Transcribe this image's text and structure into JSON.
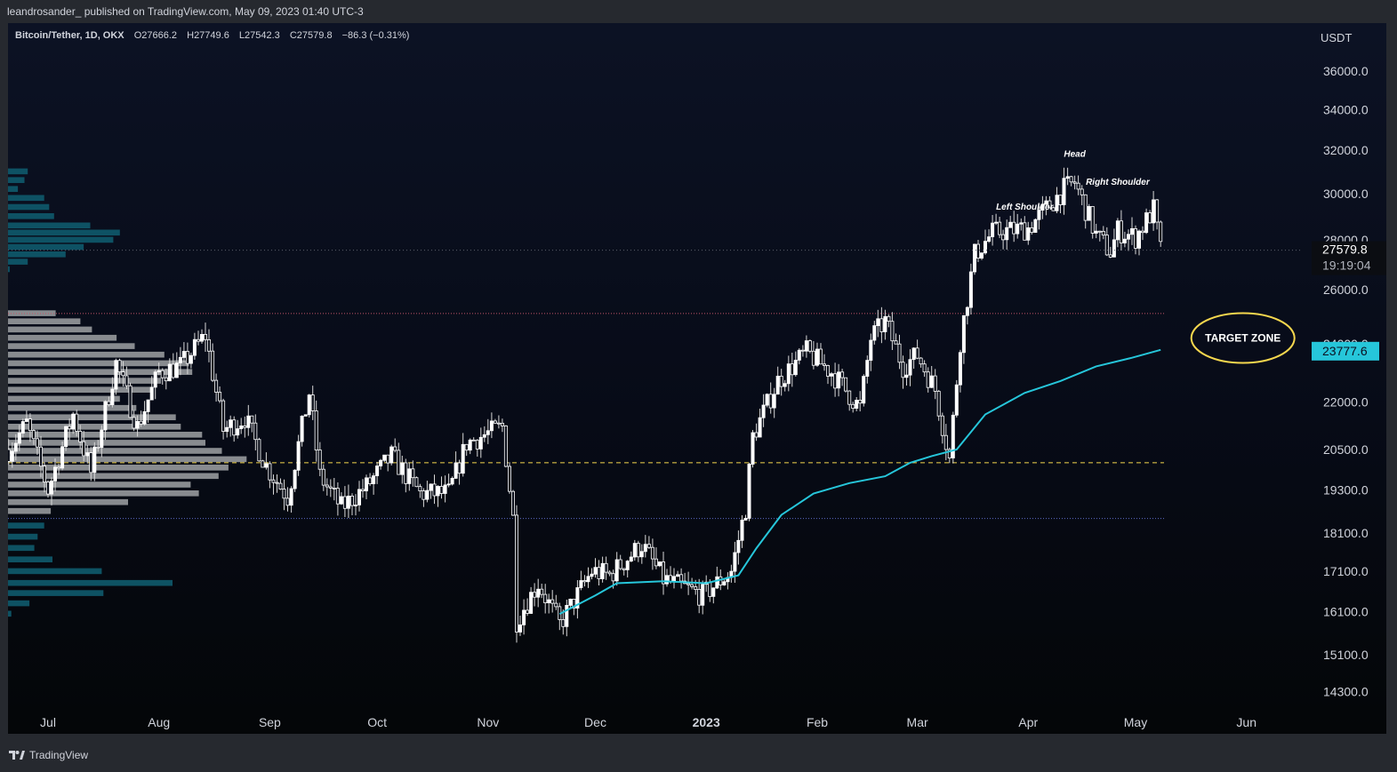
{
  "header": {
    "publisher_line": "leandrosander_ published on TradingView.com, May 09, 2023 01:40 UTC-3"
  },
  "legend": {
    "symbol": "Bitcoin/Tether, 1D, OKX",
    "open_label": "O",
    "open": "27666.2",
    "high_label": "H",
    "high": "27749.6",
    "low_label": "L",
    "low": "27542.3",
    "close_label": "C",
    "close": "27579.8",
    "change": "−86.3 (−0.31%)"
  },
  "footer": {
    "brand": "TradingView"
  },
  "colors": {
    "up_candle": "#ffffff",
    "ma_line": "#26c6da",
    "volume_profile_gray": "#8f9296",
    "volume_profile_teal": "#0f5668",
    "poc_line": "#f5d74e",
    "vah_line": "#c2566a",
    "val_line": "#5c6ac4",
    "target_zone_outline": "#f5d74e"
  },
  "chart_data": {
    "type": "candlestick",
    "currency_label": "USDT",
    "y_axis_scale": "log",
    "ylim": [
      13800,
      39000
    ],
    "y_ticks": [
      "36000.0",
      "34000.0",
      "32000.0",
      "30000.0",
      "28000.0",
      "26000.0",
      "22000.0",
      "20500.0",
      "19300.0",
      "18100.0",
      "17100.0",
      "16100.0",
      "15100.0",
      "14300.0"
    ],
    "x_ticks": [
      "Jul",
      "Aug",
      "Sep",
      "Oct",
      "Nov",
      "Dec",
      "2023",
      "Feb",
      "Mar",
      "Apr",
      "May",
      "Jun"
    ],
    "last_price": "27579.8",
    "countdown": "19:19:04",
    "ma_value_label": "23777.6",
    "hidden_price_label": "24000.0",
    "price_closes": [
      [
        "2022-06-20",
        20500
      ],
      [
        "2022-06-25",
        21300
      ],
      [
        "2022-07-01",
        19300
      ],
      [
        "2022-07-08",
        21600
      ],
      [
        "2022-07-13",
        19800
      ],
      [
        "2022-07-20",
        23300
      ],
      [
        "2022-07-26",
        21200
      ],
      [
        "2022-08-01",
        23000
      ],
      [
        "2022-08-07",
        23200
      ],
      [
        "2022-08-14",
        24300
      ],
      [
        "2022-08-19",
        21100
      ],
      [
        "2022-08-25",
        21500
      ],
      [
        "2022-08-31",
        20000
      ],
      [
        "2022-09-06",
        19100
      ],
      [
        "2022-09-12",
        22300
      ],
      [
        "2022-09-15",
        19700
      ],
      [
        "2022-09-21",
        18800
      ],
      [
        "2022-09-28",
        19400
      ],
      [
        "2022-10-05",
        20300
      ],
      [
        "2022-10-13",
        19200
      ],
      [
        "2022-10-21",
        19200
      ],
      [
        "2022-10-26",
        20700
      ],
      [
        "2022-11-05",
        21200
      ],
      [
        "2022-11-08",
        18500
      ],
      [
        "2022-11-09",
        15900
      ],
      [
        "2022-11-15",
        16800
      ],
      [
        "2022-11-21",
        15800
      ],
      [
        "2022-11-30",
        17100
      ],
      [
        "2022-12-05",
        17000
      ],
      [
        "2022-12-14",
        17800
      ],
      [
        "2022-12-20",
        16900
      ],
      [
        "2022-12-31",
        16500
      ],
      [
        "2023-01-08",
        17100
      ],
      [
        "2023-01-12",
        18800
      ],
      [
        "2023-01-14",
        20900
      ],
      [
        "2023-01-21",
        22700
      ],
      [
        "2023-01-29",
        23700
      ],
      [
        "2023-02-05",
        23000
      ],
      [
        "2023-02-13",
        21800
      ],
      [
        "2023-02-16",
        24200
      ],
      [
        "2023-02-20",
        24800
      ],
      [
        "2023-02-25",
        23200
      ],
      [
        "2023-03-01",
        23600
      ],
      [
        "2023-03-06",
        22400
      ],
      [
        "2023-03-10",
        20200
      ],
      [
        "2023-03-13",
        24100
      ],
      [
        "2023-03-17",
        27400
      ],
      [
        "2023-03-22",
        28300
      ],
      [
        "2023-04-01",
        28500
      ],
      [
        "2023-04-11",
        30200
      ],
      [
        "2023-04-14",
        30500
      ],
      [
        "2023-04-20",
        28200
      ],
      [
        "2023-04-24",
        27500
      ],
      [
        "2023-04-26",
        28400
      ],
      [
        "2023-05-01",
        28100
      ],
      [
        "2023-05-06",
        29300
      ],
      [
        "2023-05-08",
        27579.8
      ]
    ],
    "ma_series": [
      [
        "2022-11-21",
        16050
      ],
      [
        "2022-12-01",
        16500
      ],
      [
        "2022-12-07",
        16800
      ],
      [
        "2022-12-20",
        16850
      ],
      [
        "2023-01-01",
        16800
      ],
      [
        "2023-01-10",
        17000
      ],
      [
        "2023-01-15",
        17700
      ],
      [
        "2023-01-22",
        18600
      ],
      [
        "2023-01-31",
        19200
      ],
      [
        "2023-02-10",
        19500
      ],
      [
        "2023-02-20",
        19700
      ],
      [
        "2023-02-27",
        20100
      ],
      [
        "2023-03-05",
        20300
      ],
      [
        "2023-03-12",
        20500
      ],
      [
        "2023-03-20",
        21600
      ],
      [
        "2023-03-31",
        22300
      ],
      [
        "2023-04-10",
        22700
      ],
      [
        "2023-04-20",
        23200
      ],
      [
        "2023-04-30",
        23500
      ],
      [
        "2023-05-08",
        23777.6
      ]
    ],
    "horizontal_levels": [
      {
        "price": 25100,
        "style": "dotted",
        "kind": "vah"
      },
      {
        "price": 20100,
        "style": "dashed",
        "kind": "poc"
      },
      {
        "price": 18500,
        "style": "dotted",
        "kind": "val"
      }
    ],
    "volume_profile_upper": [
      {
        "price": 31000,
        "length": 0.12
      },
      {
        "price": 30600,
        "length": 0.1
      },
      {
        "price": 30200,
        "length": 0.06
      },
      {
        "price": 29800,
        "length": 0.22
      },
      {
        "price": 29400,
        "length": 0.25
      },
      {
        "price": 29000,
        "length": 0.28
      },
      {
        "price": 28600,
        "length": 0.5
      },
      {
        "price": 28300,
        "length": 0.68
      },
      {
        "price": 28000,
        "length": 0.64
      },
      {
        "price": 27700,
        "length": 0.46
      },
      {
        "price": 27400,
        "length": 0.35
      },
      {
        "price": 27100,
        "length": 0.12
      },
      {
        "price": 26800,
        "length": 0.01
      }
    ],
    "volume_profile_mid": [
      {
        "price": 25100,
        "length": 0.29
      },
      {
        "price": 24800,
        "length": 0.44
      },
      {
        "price": 24500,
        "length": 0.51
      },
      {
        "price": 24200,
        "length": 0.66
      },
      {
        "price": 23900,
        "length": 0.77
      },
      {
        "price": 23600,
        "length": 0.95
      },
      {
        "price": 23300,
        "length": 1.1
      },
      {
        "price": 23000,
        "length": 1.12
      },
      {
        "price": 22700,
        "length": 0.93
      },
      {
        "price": 22400,
        "length": 0.87
      },
      {
        "price": 22100,
        "length": 0.68
      },
      {
        "price": 21800,
        "length": 0.78
      },
      {
        "price": 21500,
        "length": 1.02
      },
      {
        "price": 21200,
        "length": 1.05
      },
      {
        "price": 20950,
        "length": 1.18
      },
      {
        "price": 20700,
        "length": 1.2
      },
      {
        "price": 20450,
        "length": 1.3
      },
      {
        "price": 20200,
        "length": 1.45
      },
      {
        "price": 19950,
        "length": 1.34
      },
      {
        "price": 19700,
        "length": 1.28
      },
      {
        "price": 19450,
        "length": 1.11
      },
      {
        "price": 19200,
        "length": 1.16
      },
      {
        "price": 18950,
        "length": 0.73
      },
      {
        "price": 18700,
        "length": 0.26
      }
    ],
    "volume_profile_lower": [
      {
        "price": 18300,
        "length": 0.22
      },
      {
        "price": 18000,
        "length": 0.18
      },
      {
        "price": 17700,
        "length": 0.16
      },
      {
        "price": 17400,
        "length": 0.27
      },
      {
        "price": 17100,
        "length": 0.57
      },
      {
        "price": 16800,
        "length": 1.0
      },
      {
        "price": 16550,
        "length": 0.58
      },
      {
        "price": 16300,
        "length": 0.13
      },
      {
        "price": 16050,
        "length": 0.02
      }
    ],
    "annotations": [
      {
        "text": "Head",
        "date": "2023-04-14",
        "price": 31700
      },
      {
        "text": "Left Shoulder",
        "date": "2023-03-31",
        "price": 29300
      },
      {
        "text": "Right Shoulder",
        "date": "2023-04-26",
        "price": 30400
      },
      {
        "text": "TARGET ZONE",
        "date": "2023-05-31",
        "price": 24200
      }
    ]
  }
}
